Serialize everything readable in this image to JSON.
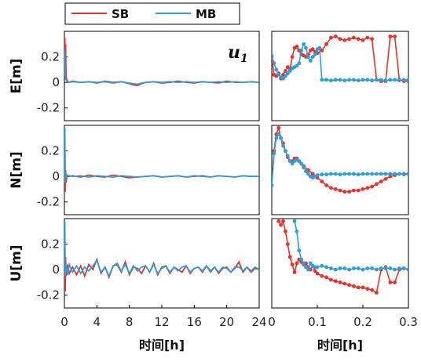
{
  "colors": {
    "SB": "#e8332b",
    "MB": "#2b9fdc"
  },
  "legend": [
    {
      "label": "SB",
      "color": "#e8332b"
    },
    {
      "label": "MB",
      "color": "#2b9fdc"
    }
  ],
  "annotation": {
    "main": "u",
    "sub": "1"
  },
  "chart_data": [
    {
      "type": "line",
      "panel": "E-full",
      "ylabel": "E[m]",
      "xlabel": "",
      "xlim": [
        0,
        24
      ],
      "ylim": [
        -0.3,
        0.4
      ],
      "yticks": [
        "0.2",
        "0",
        "-0.2"
      ],
      "xticks": [],
      "series": [
        {
          "name": "SB",
          "x": [
            0,
            0.05,
            0.1,
            0.15,
            0.2,
            0.3,
            0.5,
            1,
            2,
            3,
            4,
            5,
            6,
            7,
            8,
            8.5,
            9,
            9.5,
            10,
            11,
            12,
            13,
            14,
            15,
            16,
            17,
            18,
            19,
            20,
            21,
            22,
            23,
            24
          ],
          "values": [
            0.05,
            0.35,
            0.1,
            0.3,
            0.05,
            0.02,
            0.0,
            0.01,
            0.0,
            0.005,
            -0.005,
            0.01,
            0.0,
            0.005,
            -0.01,
            -0.02,
            -0.025,
            -0.01,
            0.0,
            0.005,
            -0.005,
            0.0,
            0.01,
            0.0,
            -0.005,
            0.005,
            0.0,
            -0.005,
            0.01,
            0.0,
            0.0,
            0.005,
            0.0
          ]
        },
        {
          "name": "MB",
          "x": [
            0,
            0.05,
            0.1,
            0.2,
            0.3,
            0.5,
            1,
            2,
            3,
            4,
            5,
            6,
            7,
            8,
            8.5,
            9,
            9.5,
            10,
            11,
            12,
            13,
            14,
            15,
            16,
            17,
            18,
            19,
            20,
            21,
            22,
            23,
            24
          ],
          "values": [
            0.2,
            0.25,
            0.05,
            0.02,
            0.01,
            0.0,
            0.005,
            0.0,
            0.005,
            0.0,
            0.005,
            -0.005,
            0.005,
            -0.005,
            -0.01,
            -0.015,
            -0.005,
            0.0,
            0.005,
            0.0,
            0.005,
            0.0,
            0.005,
            0.0,
            0.005,
            0.0,
            0.005,
            0.0,
            0.005,
            0.0,
            0.005,
            0.0
          ]
        }
      ]
    },
    {
      "type": "line",
      "panel": "E-zoom",
      "xlim": [
        0,
        0.3
      ],
      "ylim": [
        -0.3,
        0.4
      ],
      "xticks": [],
      "series": [
        {
          "name": "SB",
          "x": [
            0,
            0.005,
            0.01,
            0.015,
            0.02,
            0.025,
            0.03,
            0.035,
            0.04,
            0.045,
            0.05,
            0.055,
            0.06,
            0.065,
            0.07,
            0.075,
            0.08,
            0.085,
            0.09,
            0.095,
            0.1,
            0.11,
            0.12,
            0.13,
            0.14,
            0.15,
            0.16,
            0.17,
            0.18,
            0.19,
            0.2,
            0.21,
            0.22,
            0.23,
            0.24,
            0.25,
            0.26,
            0.27,
            0.28,
            0.29,
            0.3
          ],
          "values": [
            0.2,
            0.06,
            0.05,
            0.07,
            0.03,
            0.06,
            0.09,
            0.12,
            0.1,
            0.2,
            0.27,
            0.28,
            0.25,
            0.22,
            0.21,
            0.2,
            0.22,
            0.25,
            0.26,
            0.24,
            0.23,
            0.25,
            0.3,
            0.35,
            0.36,
            0.34,
            0.33,
            0.34,
            0.35,
            0.34,
            0.33,
            0.35,
            0.34,
            0.02,
            0.01,
            0.01,
            0.36,
            0.36,
            0.02,
            0.01,
            0.01
          ]
        },
        {
          "name": "MB",
          "x": [
            0,
            0.005,
            0.01,
            0.015,
            0.02,
            0.025,
            0.03,
            0.035,
            0.04,
            0.045,
            0.05,
            0.055,
            0.06,
            0.065,
            0.07,
            0.075,
            0.08,
            0.085,
            0.09,
            0.095,
            0.1,
            0.105,
            0.11,
            0.12,
            0.13,
            0.14,
            0.15,
            0.16,
            0.17,
            0.18,
            0.19,
            0.2,
            0.21,
            0.22,
            0.23,
            0.24,
            0.25,
            0.26,
            0.27,
            0.28,
            0.29,
            0.3
          ],
          "values": [
            0.21,
            0.15,
            0.1,
            0.06,
            0.04,
            0.03,
            0.05,
            0.07,
            0.09,
            0.11,
            0.12,
            0.13,
            0.15,
            0.25,
            0.3,
            0.27,
            0.2,
            0.17,
            0.2,
            0.22,
            0.26,
            0.27,
            0.02,
            0.02,
            0.015,
            0.02,
            0.02,
            0.015,
            0.02,
            0.02,
            0.015,
            0.02,
            0.02,
            0.015,
            0.02,
            0.02,
            0.015,
            0.02,
            0.02,
            0.015,
            0.02,
            0.02
          ]
        }
      ]
    },
    {
      "type": "line",
      "panel": "N-full",
      "ylabel": "N[m]",
      "xlabel": "",
      "xlim": [
        0,
        24
      ],
      "ylim": [
        -0.3,
        0.4
      ],
      "yticks": [
        "0.2",
        "0",
        "-0.2"
      ],
      "xticks": [],
      "series": [
        {
          "name": "SB",
          "x": [
            0,
            0.05,
            0.1,
            0.15,
            0.2,
            0.3,
            0.5,
            1,
            2,
            3,
            4,
            5,
            6,
            7,
            8,
            9,
            10,
            11,
            12,
            13,
            14,
            15,
            16,
            17,
            18,
            19,
            20,
            21,
            22,
            23,
            24
          ],
          "values": [
            0.0,
            0.38,
            -0.12,
            0.05,
            -0.05,
            0.0,
            0.0,
            0.005,
            -0.005,
            0.01,
            0.0,
            -0.005,
            0.01,
            0.0,
            -0.01,
            -0.005,
            0.0,
            0.005,
            -0.005,
            0.0,
            0.005,
            -0.005,
            0.0,
            0.005,
            -0.005,
            0.005,
            0.0,
            -0.005,
            0.005,
            0.0,
            0.0
          ]
        },
        {
          "name": "MB",
          "x": [
            0,
            0.05,
            0.1,
            0.2,
            0.3,
            0.5,
            1,
            2,
            3,
            4,
            5,
            6,
            7,
            8,
            9,
            10,
            11,
            12,
            13,
            14,
            15,
            16,
            17,
            18,
            19,
            20,
            21,
            22,
            23,
            24
          ],
          "values": [
            0.1,
            0.38,
            -0.05,
            0.02,
            0.01,
            0.005,
            0.0,
            0.005,
            -0.005,
            0.005,
            0.0,
            -0.005,
            0.005,
            0.0,
            -0.005,
            0.0,
            0.005,
            -0.005,
            0.0,
            0.005,
            -0.005,
            0.005,
            0.0,
            -0.005,
            0.005,
            0.0,
            -0.005,
            0.005,
            0.0,
            0.0
          ]
        }
      ]
    },
    {
      "type": "line",
      "panel": "N-zoom",
      "xlim": [
        0,
        0.3
      ],
      "ylim": [
        -0.3,
        0.4
      ],
      "xticks": [],
      "series": [
        {
          "name": "SB",
          "x": [
            0,
            0.005,
            0.01,
            0.015,
            0.02,
            0.025,
            0.03,
            0.035,
            0.04,
            0.045,
            0.05,
            0.055,
            0.06,
            0.065,
            0.07,
            0.08,
            0.09,
            0.1,
            0.11,
            0.12,
            0.13,
            0.14,
            0.15,
            0.16,
            0.17,
            0.18,
            0.19,
            0.2,
            0.21,
            0.22,
            0.23,
            0.24,
            0.25,
            0.26,
            0.27,
            0.28,
            0.29,
            0.3
          ],
          "values": [
            -0.07,
            0.2,
            0.33,
            0.38,
            0.3,
            0.26,
            0.2,
            0.15,
            0.12,
            0.12,
            0.14,
            0.14,
            0.12,
            0.1,
            0.08,
            0.05,
            0.02,
            -0.01,
            -0.04,
            -0.07,
            -0.09,
            -0.1,
            -0.11,
            -0.12,
            -0.12,
            -0.11,
            -0.11,
            -0.1,
            -0.09,
            -0.08,
            -0.06,
            -0.04,
            -0.02,
            0.0,
            0.01,
            0.02,
            0.02,
            0.02
          ]
        },
        {
          "name": "MB",
          "x": [
            0,
            0.005,
            0.01,
            0.015,
            0.02,
            0.025,
            0.03,
            0.035,
            0.04,
            0.045,
            0.05,
            0.055,
            0.06,
            0.065,
            0.07,
            0.075,
            0.08,
            0.085,
            0.09,
            0.095,
            0.1,
            0.11,
            0.12,
            0.13,
            0.14,
            0.15,
            0.16,
            0.17,
            0.18,
            0.19,
            0.2,
            0.21,
            0.22,
            0.23,
            0.24,
            0.25,
            0.26,
            0.27,
            0.28,
            0.29,
            0.3
          ],
          "values": [
            -0.07,
            0.18,
            0.3,
            0.33,
            0.3,
            0.24,
            0.2,
            0.16,
            0.12,
            0.1,
            0.12,
            0.13,
            0.12,
            0.1,
            0.07,
            0.04,
            0.02,
            0.0,
            -0.01,
            0.0,
            0.01,
            0.015,
            0.015,
            0.02,
            0.02,
            0.015,
            0.02,
            0.02,
            0.02,
            0.015,
            0.02,
            0.02,
            0.02,
            0.02,
            0.02,
            0.02,
            0.02,
            0.02,
            0.02,
            0.015,
            0.02
          ]
        }
      ]
    },
    {
      "type": "line",
      "panel": "U-full",
      "ylabel": "U[m]",
      "xlabel": "时间[h]",
      "xlim": [
        0,
        24
      ],
      "ylim": [
        -0.3,
        0.4
      ],
      "yticks": [
        "0.2",
        "0",
        "-0.2"
      ],
      "xticks": [
        "0",
        "4",
        "8",
        "12",
        "16",
        "20",
        "24"
      ],
      "series": [
        {
          "name": "SB",
          "x": [
            0,
            0.05,
            0.1,
            0.15,
            0.2,
            0.4,
            0.6,
            1,
            1.5,
            2,
            2.5,
            3,
            3.5,
            4,
            4.5,
            5,
            5.5,
            6,
            6.5,
            7,
            7.5,
            8,
            8.5,
            9,
            9.5,
            10,
            10.5,
            11,
            11.5,
            12,
            12.5,
            13,
            13.5,
            14,
            14.5,
            15,
            15.5,
            16,
            16.5,
            17,
            17.5,
            18,
            18.5,
            19,
            19.5,
            20,
            20.5,
            21,
            21.5,
            22,
            22.5,
            23,
            23.5,
            24
          ],
          "values": [
            0.0,
            0.3,
            -0.17,
            0.1,
            -0.05,
            0.04,
            -0.03,
            0.02,
            -0.04,
            0.03,
            -0.05,
            0.04,
            0.0,
            0.08,
            -0.03,
            0.02,
            -0.06,
            0.03,
            0.04,
            -0.02,
            0.06,
            -0.04,
            0.02,
            0.01,
            -0.03,
            0.03,
            -0.02,
            0.05,
            -0.04,
            0.02,
            0.03,
            -0.03,
            0.02,
            0.0,
            -0.02,
            0.03,
            -0.03,
            0.01,
            0.02,
            -0.02,
            0.03,
            -0.01,
            0.02,
            -0.03,
            0.01,
            0.02,
            -0.02,
            0.01,
            0.06,
            -0.02,
            0.02,
            -0.02,
            0.01,
            0.0
          ]
        },
        {
          "name": "MB",
          "x": [
            0,
            0.05,
            0.1,
            0.2,
            0.4,
            0.6,
            1,
            1.5,
            2,
            2.5,
            3,
            3.5,
            4,
            4.5,
            5,
            5.5,
            6,
            6.5,
            7,
            7.5,
            8,
            8.5,
            9,
            9.5,
            10,
            10.5,
            11,
            11.5,
            12,
            12.5,
            13,
            13.5,
            14,
            14.5,
            15,
            15.5,
            16,
            16.5,
            17,
            17.5,
            18,
            18.5,
            19,
            19.5,
            20,
            20.5,
            21,
            21.5,
            22,
            22.5,
            23,
            23.5,
            24
          ],
          "values": [
            0.1,
            0.38,
            -0.05,
            0.03,
            -0.04,
            0.04,
            -0.02,
            0.03,
            -0.03,
            0.02,
            -0.01,
            0.03,
            0.07,
            -0.02,
            0.02,
            -0.05,
            0.03,
            0.05,
            -0.01,
            0.04,
            -0.03,
            0.03,
            -0.01,
            0.02,
            0.03,
            -0.02,
            0.04,
            -0.03,
            0.01,
            0.03,
            -0.02,
            0.02,
            -0.01,
            0.02,
            0.03,
            -0.02,
            0.01,
            0.02,
            -0.01,
            0.03,
            -0.02,
            0.02,
            -0.02,
            0.02,
            0.01,
            -0.02,
            0.02,
            0.02,
            -0.01,
            0.02,
            -0.01,
            0.02,
            0.0
          ]
        }
      ]
    },
    {
      "type": "line",
      "panel": "U-zoom",
      "xlabel": "时间[h]",
      "xlim": [
        0,
        0.3
      ],
      "ylim": [
        -0.3,
        0.4
      ],
      "xticks": [
        "0",
        "0.1",
        "0.2",
        "0.3"
      ],
      "series": [
        {
          "name": "SB",
          "x": [
            0.015,
            0.02,
            0.025,
            0.03,
            0.035,
            0.04,
            0.045,
            0.05,
            0.055,
            0.06,
            0.065,
            0.07,
            0.075,
            0.08,
            0.085,
            0.09,
            0.095,
            0.1,
            0.11,
            0.12,
            0.13,
            0.14,
            0.15,
            0.16,
            0.17,
            0.18,
            0.19,
            0.2,
            0.21,
            0.22,
            0.23,
            0.24,
            0.25,
            0.26,
            0.27,
            0.28,
            0.29,
            0.3
          ],
          "values": [
            0.38,
            0.35,
            0.38,
            0.3,
            0.2,
            0.1,
            0.04,
            -0.02,
            0.05,
            0.08,
            0.06,
            0.04,
            0.05,
            0.02,
            0.0,
            0.03,
            -0.01,
            -0.03,
            -0.05,
            -0.06,
            -0.08,
            -0.09,
            -0.1,
            -0.11,
            -0.12,
            -0.13,
            -0.14,
            -0.14,
            -0.15,
            -0.16,
            -0.18,
            0.0,
            0.02,
            -0.1,
            -0.1,
            0.0,
            0.01,
            0.0
          ]
        },
        {
          "name": "MB",
          "x": [
            0.05,
            0.055,
            0.06,
            0.065,
            0.07,
            0.075,
            0.08,
            0.085,
            0.09,
            0.095,
            0.1,
            0.11,
            0.12,
            0.13,
            0.14,
            0.15,
            0.16,
            0.17,
            0.18,
            0.19,
            0.2,
            0.21,
            0.22,
            0.23,
            0.24,
            0.25,
            0.26,
            0.27,
            0.28,
            0.29,
            0.3
          ],
          "values": [
            0.38,
            0.3,
            0.15,
            0.08,
            0.05,
            0.02,
            0.0,
            0.05,
            0.03,
            0.02,
            0.02,
            0.03,
            0.02,
            0.01,
            0.0,
            0.01,
            0.01,
            0.0,
            0.01,
            0.01,
            0.0,
            0.01,
            0.01,
            0.0,
            0.01,
            0.01,
            0.01,
            0.0,
            0.01,
            0.01,
            0.0
          ]
        }
      ]
    }
  ]
}
